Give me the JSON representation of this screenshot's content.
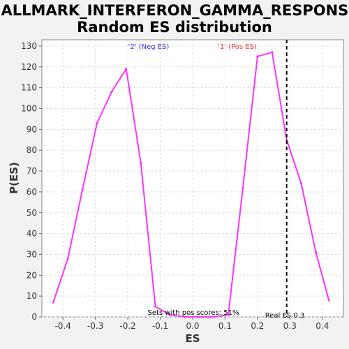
{
  "chart_data": {
    "type": "line",
    "title_line1": "HALLMARK_INTERFERON_GAMMA_RESPONSE:",
    "title_line2": "Random ES distribution",
    "xlabel": "ES",
    "ylabel": "P(ES)",
    "xlim": [
      -0.465,
      0.465
    ],
    "ylim": [
      0,
      133
    ],
    "x_ticks": [
      -0.4,
      -0.3,
      -0.2,
      -0.1,
      0.0,
      0.1,
      0.2,
      0.3,
      0.4
    ],
    "x_tick_labels": [
      "-0.4",
      "-0.3",
      "-0.2",
      "-0.1",
      "0.0",
      "0.1",
      "0.2",
      "0.3",
      "0.4"
    ],
    "y_ticks": [
      0,
      10,
      20,
      30,
      40,
      50,
      60,
      70,
      80,
      90,
      100,
      110,
      120,
      130
    ],
    "y_tick_labels": [
      "0",
      "10",
      "20",
      "30",
      "40",
      "50",
      "60",
      "70",
      "80",
      "90",
      "100",
      "110",
      "120",
      "130"
    ],
    "grid": true,
    "series": [
      {
        "color": "#ff33ff",
        "x": [
          -0.43,
          -0.385,
          -0.34,
          -0.295,
          -0.25,
          -0.205,
          -0.16,
          -0.115,
          -0.07,
          -0.025,
          0.02,
          0.065,
          0.11,
          0.155,
          0.2,
          0.245,
          0.29,
          0.335,
          0.38,
          0.42
        ],
        "y": [
          7,
          28,
          61,
          93,
          108,
          119,
          74,
          5,
          1,
          0,
          0,
          0,
          1,
          62,
          125,
          127,
          85,
          64,
          31,
          8
        ]
      }
    ],
    "real_es": {
      "value": 0.29,
      "label": "Real ES 0.3"
    },
    "annotations": {
      "neg_label": "'2' (Neg ES)",
      "pos_label": "'1' (Pos ES)",
      "pos_scores": "Sets with pos scores: 51%"
    },
    "colors": {
      "neg_label": "#3333ff",
      "pos_label": "#ff3333",
      "plot_bg": "#ffffff",
      "page_bg": "#f2f2f2"
    }
  }
}
